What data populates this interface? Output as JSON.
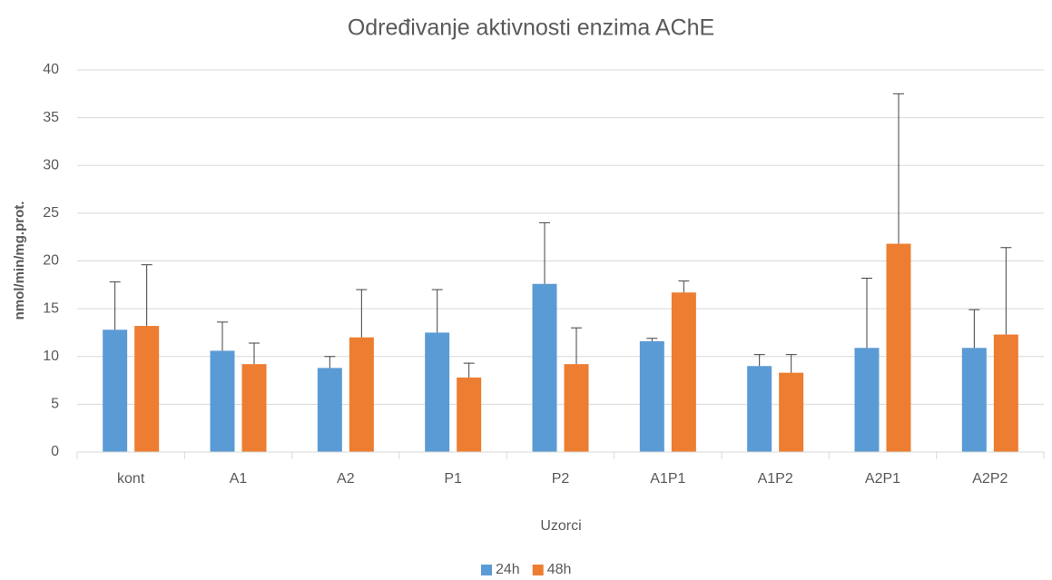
{
  "chart_data": {
    "type": "bar",
    "title": "Određivanje aktivnosti  enzima AChE",
    "xlabel": "Uzorci",
    "ylabel": "nmol/min/mg.prot.",
    "categories": [
      "kont",
      "A1",
      "A2",
      "P1",
      "P2",
      "A1P1",
      "A1P2",
      "A2P1",
      "A2P2"
    ],
    "series": [
      {
        "name": "24h",
        "color": "#5b9bd5",
        "values": [
          12.8,
          10.6,
          8.8,
          12.5,
          17.6,
          11.6,
          9.0,
          10.9,
          10.9
        ],
        "errors": [
          5.0,
          3.0,
          1.2,
          4.5,
          6.4,
          0.3,
          1.2,
          7.3,
          4.0
        ]
      },
      {
        "name": "48h",
        "color": "#ed7d31",
        "values": [
          13.2,
          9.2,
          12.0,
          7.8,
          9.2,
          16.7,
          8.3,
          21.8,
          12.3
        ],
        "errors": [
          6.4,
          2.2,
          5.0,
          1.5,
          3.8,
          1.2,
          1.9,
          15.7,
          9.1
        ]
      }
    ],
    "ylim": [
      0,
      40
    ],
    "yticks": [
      0,
      5,
      10,
      15,
      20,
      25,
      30,
      35,
      40
    ],
    "grid": true,
    "legend": "bottom"
  }
}
